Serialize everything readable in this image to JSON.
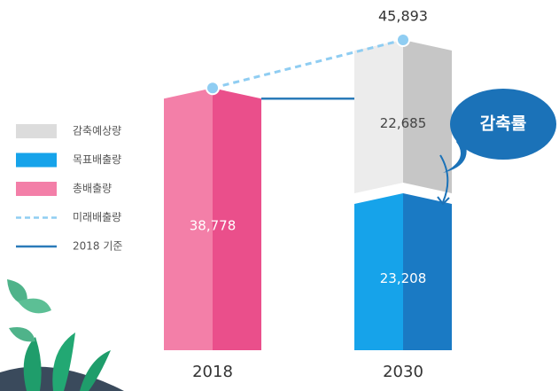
{
  "chart_data": {
    "type": "bar",
    "stacked": true,
    "categories": [
      "2018",
      "2030"
    ],
    "series": [
      {
        "name": "감축예상량",
        "type": "bar",
        "color": "#ececec",
        "side_color": "#c6c6c6",
        "label_color": "#444444",
        "values": [
          null,
          22685
        ],
        "value_labels": [
          null,
          "22,685"
        ]
      },
      {
        "name": "목표배출량",
        "type": "bar",
        "color": "#16a3ea",
        "side_color": "#1a7ac4",
        "label_color": "#ffffff",
        "values": [
          null,
          23208
        ],
        "value_labels": [
          null,
          "23,208"
        ]
      },
      {
        "name": "총배출량",
        "type": "bar",
        "color": "#f37fa8",
        "side_color": "#ea4f8b",
        "label_color": "#ffffff",
        "values": [
          38778,
          null
        ],
        "value_labels": [
          "38,778",
          null
        ]
      },
      {
        "name": "미래배출량",
        "type": "line",
        "dashed": true,
        "markers": true,
        "color": "#8fcdf2",
        "values": [
          38778,
          45893
        ],
        "value_labels": [
          null,
          "45,893"
        ]
      },
      {
        "name": "2018 기준",
        "type": "line",
        "dashed": false,
        "markers": false,
        "color": "#2b7bb9",
        "values": [
          38778,
          38778
        ],
        "value_labels": [
          null,
          null
        ]
      }
    ],
    "annotation": "감축률",
    "annotation_color": "#1b72b8"
  }
}
